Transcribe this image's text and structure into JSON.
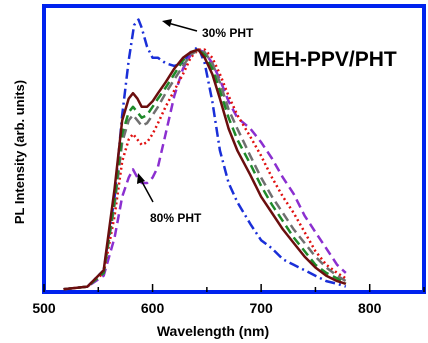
{
  "chart_data": {
    "type": "line",
    "title": "MEH-PPV/PHT",
    "xlabel": "Wavelength (nm)",
    "ylabel": "PL Intensity (arb. units)",
    "xlim": [
      500,
      850
    ],
    "ylim": [
      0,
      1.05
    ],
    "xticks": [
      "500",
      "600",
      "700",
      "800"
    ],
    "xtick_values": [
      500,
      600,
      700,
      800
    ],
    "grid": false,
    "legend": "none",
    "annotations": [
      {
        "text": "30% PHT",
        "points_to": [
          592,
          1.0
        ]
      },
      {
        "text": "80% PHT",
        "points_to": [
          580,
          0.45
        ]
      }
    ],
    "series": [
      {
        "color": "#1a2fd8",
        "dash": "dash-dot",
        "x": [
          518,
          540,
          555,
          565,
          572,
          578,
          583,
          587,
          590,
          595,
          600,
          605,
          612,
          620,
          628,
          635,
          642,
          648,
          655,
          662,
          670,
          678,
          690,
          700,
          710,
          720,
          730,
          740,
          750,
          760,
          770,
          778
        ],
        "y": [
          0.01,
          0.02,
          0.08,
          0.35,
          0.65,
          0.85,
          0.98,
          1.0,
          0.97,
          0.9,
          0.86,
          0.86,
          0.84,
          0.83,
          0.84,
          0.88,
          0.9,
          0.84,
          0.7,
          0.52,
          0.4,
          0.33,
          0.25,
          0.19,
          0.16,
          0.12,
          0.1,
          0.08,
          0.06,
          0.04,
          0.03,
          0.02
        ]
      },
      {
        "color": "#8b2fd0",
        "dash": "dashed",
        "x": [
          518,
          540,
          555,
          565,
          572,
          578,
          582,
          586,
          590,
          595,
          600,
          605,
          612,
          620,
          628,
          635,
          642,
          648,
          655,
          662,
          670,
          678,
          690,
          700,
          710,
          720,
          730,
          740,
          750,
          760,
          770,
          778
        ],
        "y": [
          0.01,
          0.02,
          0.06,
          0.2,
          0.35,
          0.42,
          0.45,
          0.42,
          0.4,
          0.4,
          0.42,
          0.46,
          0.58,
          0.72,
          0.82,
          0.87,
          0.89,
          0.88,
          0.84,
          0.78,
          0.7,
          0.64,
          0.6,
          0.55,
          0.49,
          0.42,
          0.36,
          0.28,
          0.22,
          0.16,
          0.1,
          0.07
        ]
      },
      {
        "color": "#e01010",
        "dash": "dotted",
        "x": [
          518,
          540,
          555,
          565,
          572,
          578,
          582,
          586,
          590,
          595,
          600,
          605,
          612,
          620,
          628,
          635,
          642,
          648,
          655,
          662,
          670,
          678,
          690,
          700,
          710,
          720,
          730,
          740,
          750,
          760,
          770,
          778
        ],
        "y": [
          0.01,
          0.02,
          0.07,
          0.28,
          0.48,
          0.56,
          0.58,
          0.56,
          0.54,
          0.55,
          0.58,
          0.62,
          0.68,
          0.74,
          0.8,
          0.86,
          0.89,
          0.89,
          0.86,
          0.8,
          0.72,
          0.65,
          0.57,
          0.5,
          0.42,
          0.35,
          0.29,
          0.22,
          0.15,
          0.1,
          0.07,
          0.05
        ]
      },
      {
        "color": "#707070",
        "dash": "dashed",
        "x": [
          518,
          540,
          555,
          565,
          572,
          578,
          582,
          586,
          590,
          595,
          600,
          605,
          612,
          620,
          628,
          635,
          642,
          648,
          655,
          662,
          670,
          678,
          690,
          700,
          710,
          720,
          730,
          740,
          750,
          760,
          770,
          778
        ],
        "y": [
          0.01,
          0.02,
          0.07,
          0.32,
          0.55,
          0.63,
          0.65,
          0.63,
          0.61,
          0.62,
          0.65,
          0.68,
          0.73,
          0.78,
          0.83,
          0.87,
          0.89,
          0.88,
          0.84,
          0.77,
          0.67,
          0.6,
          0.5,
          0.42,
          0.35,
          0.29,
          0.23,
          0.18,
          0.13,
          0.09,
          0.06,
          0.04
        ]
      },
      {
        "color": "#1f8a2a",
        "dash": "dashed",
        "x": [
          518,
          540,
          555,
          565,
          572,
          578,
          582,
          586,
          590,
          595,
          600,
          605,
          612,
          620,
          628,
          635,
          642,
          648,
          655,
          662,
          670,
          678,
          690,
          700,
          710,
          720,
          730,
          740,
          750,
          760,
          770,
          778
        ],
        "y": [
          0.01,
          0.02,
          0.07,
          0.34,
          0.58,
          0.66,
          0.68,
          0.66,
          0.64,
          0.65,
          0.68,
          0.71,
          0.75,
          0.8,
          0.85,
          0.88,
          0.89,
          0.87,
          0.82,
          0.74,
          0.64,
          0.56,
          0.47,
          0.39,
          0.32,
          0.26,
          0.2,
          0.15,
          0.1,
          0.07,
          0.05,
          0.03
        ]
      },
      {
        "color": "#6b0e0e",
        "dash": "solid",
        "x": [
          518,
          540,
          555,
          565,
          572,
          578,
          582,
          586,
          590,
          595,
          600,
          605,
          612,
          620,
          628,
          635,
          642,
          648,
          655,
          662,
          670,
          678,
          690,
          700,
          710,
          720,
          730,
          740,
          750,
          760,
          770,
          778
        ],
        "y": [
          0.01,
          0.02,
          0.08,
          0.38,
          0.63,
          0.71,
          0.73,
          0.71,
          0.68,
          0.68,
          0.7,
          0.73,
          0.77,
          0.82,
          0.86,
          0.88,
          0.89,
          0.86,
          0.8,
          0.71,
          0.6,
          0.52,
          0.43,
          0.35,
          0.29,
          0.23,
          0.18,
          0.13,
          0.09,
          0.06,
          0.04,
          0.03
        ]
      }
    ]
  }
}
